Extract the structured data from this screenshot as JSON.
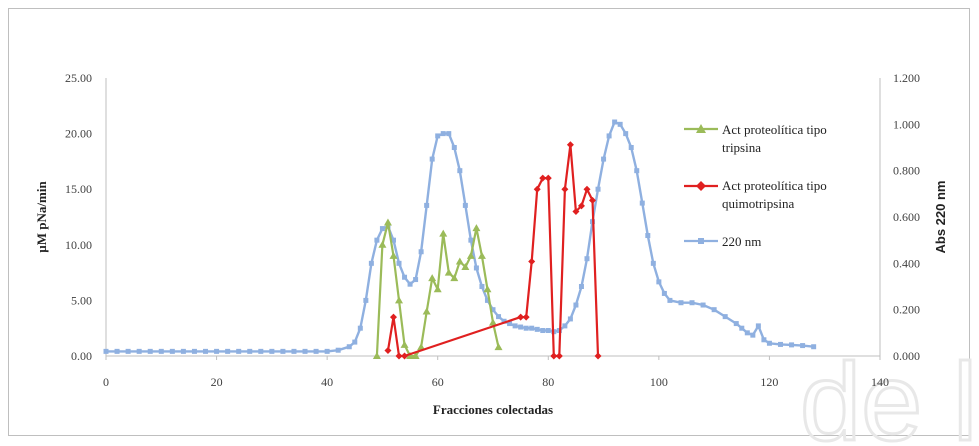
{
  "chart_data": {
    "type": "line",
    "title": "",
    "xlabel": "Fracciones colectadas",
    "ylabel_left": "µM pNa/min",
    "ylabel_right": "Abs 220 nm",
    "xlim": [
      0,
      140
    ],
    "ylim_left": [
      0,
      25
    ],
    "ylim_right": [
      0,
      1.2
    ],
    "x_ticks": [
      "0",
      "20",
      "40",
      "60",
      "80",
      "100",
      "120",
      "140"
    ],
    "y_left_ticks": [
      "0.00",
      "5.00",
      "10.00",
      "15.00",
      "20.00",
      "25.00"
    ],
    "y_right_ticks": [
      "0.000",
      "0.200",
      "0.400",
      "0.600",
      "0.800",
      "1.000",
      "1.200"
    ],
    "grid": false,
    "legend_position": "right",
    "series": [
      {
        "name": "Act proteolítica tipo tripsina",
        "axis": "left",
        "color": "#9bbb59",
        "marker": "triangle",
        "x": [
          49,
          50,
          51,
          52,
          53,
          54,
          55,
          56,
          57,
          58,
          59,
          60,
          61,
          62,
          63,
          64,
          65,
          66,
          67,
          68,
          69,
          70,
          71
        ],
        "y": [
          0,
          10,
          12,
          9,
          5,
          1,
          0,
          0,
          0.8,
          4,
          7,
          6,
          11,
          7.5,
          7,
          8.5,
          8,
          9,
          11.5,
          9,
          6,
          3,
          0.8
        ]
      },
      {
        "name": "Act proteolítica tipo quimotripsina",
        "axis": "left",
        "color": "#e02020",
        "marker": "diamond",
        "x": [
          51,
          52,
          53,
          54,
          75,
          76,
          77,
          78,
          79,
          80,
          81,
          82,
          83,
          84,
          85,
          86,
          87,
          88,
          89
        ],
        "y": [
          0.5,
          3.5,
          0,
          0,
          3.5,
          3.5,
          8.5,
          15,
          16,
          16,
          0,
          0,
          15,
          19,
          13,
          13.5,
          15,
          14,
          0
        ]
      },
      {
        "name": "220 nm",
        "axis": "right",
        "color": "#8fb0e0",
        "marker": "square",
        "x": [
          0,
          2,
          4,
          6,
          8,
          10,
          12,
          14,
          16,
          18,
          20,
          22,
          24,
          26,
          28,
          30,
          32,
          34,
          36,
          38,
          40,
          42,
          44,
          45,
          46,
          47,
          48,
          49,
          50,
          51,
          52,
          53,
          54,
          55,
          56,
          57,
          58,
          59,
          60,
          61,
          62,
          63,
          64,
          65,
          66,
          67,
          68,
          69,
          70,
          71,
          72,
          73,
          74,
          75,
          76,
          77,
          78,
          79,
          80,
          81,
          82,
          83,
          84,
          85,
          86,
          87,
          88,
          89,
          90,
          91,
          92,
          93,
          94,
          95,
          96,
          97,
          98,
          99,
          100,
          101,
          102,
          104,
          106,
          108,
          110,
          112,
          114,
          115,
          116,
          117,
          118,
          119,
          120,
          122,
          124,
          126,
          128
        ],
        "y": [
          0.02,
          0.02,
          0.02,
          0.02,
          0.02,
          0.02,
          0.02,
          0.02,
          0.02,
          0.02,
          0.02,
          0.02,
          0.02,
          0.02,
          0.02,
          0.02,
          0.02,
          0.02,
          0.02,
          0.02,
          0.02,
          0.025,
          0.04,
          0.06,
          0.12,
          0.24,
          0.4,
          0.5,
          0.55,
          0.56,
          0.5,
          0.4,
          0.34,
          0.31,
          0.33,
          0.45,
          0.65,
          0.85,
          0.95,
          0.96,
          0.96,
          0.9,
          0.8,
          0.65,
          0.5,
          0.38,
          0.3,
          0.24,
          0.2,
          0.17,
          0.15,
          0.14,
          0.13,
          0.125,
          0.12,
          0.12,
          0.115,
          0.11,
          0.11,
          0.105,
          0.11,
          0.13,
          0.16,
          0.22,
          0.3,
          0.42,
          0.58,
          0.72,
          0.85,
          0.95,
          1.01,
          1.0,
          0.96,
          0.9,
          0.8,
          0.66,
          0.52,
          0.4,
          0.32,
          0.27,
          0.24,
          0.23,
          0.23,
          0.22,
          0.2,
          0.17,
          0.14,
          0.12,
          0.1,
          0.09,
          0.13,
          0.07,
          0.055,
          0.05,
          0.048,
          0.045,
          0.04
        ]
      }
    ]
  }
}
